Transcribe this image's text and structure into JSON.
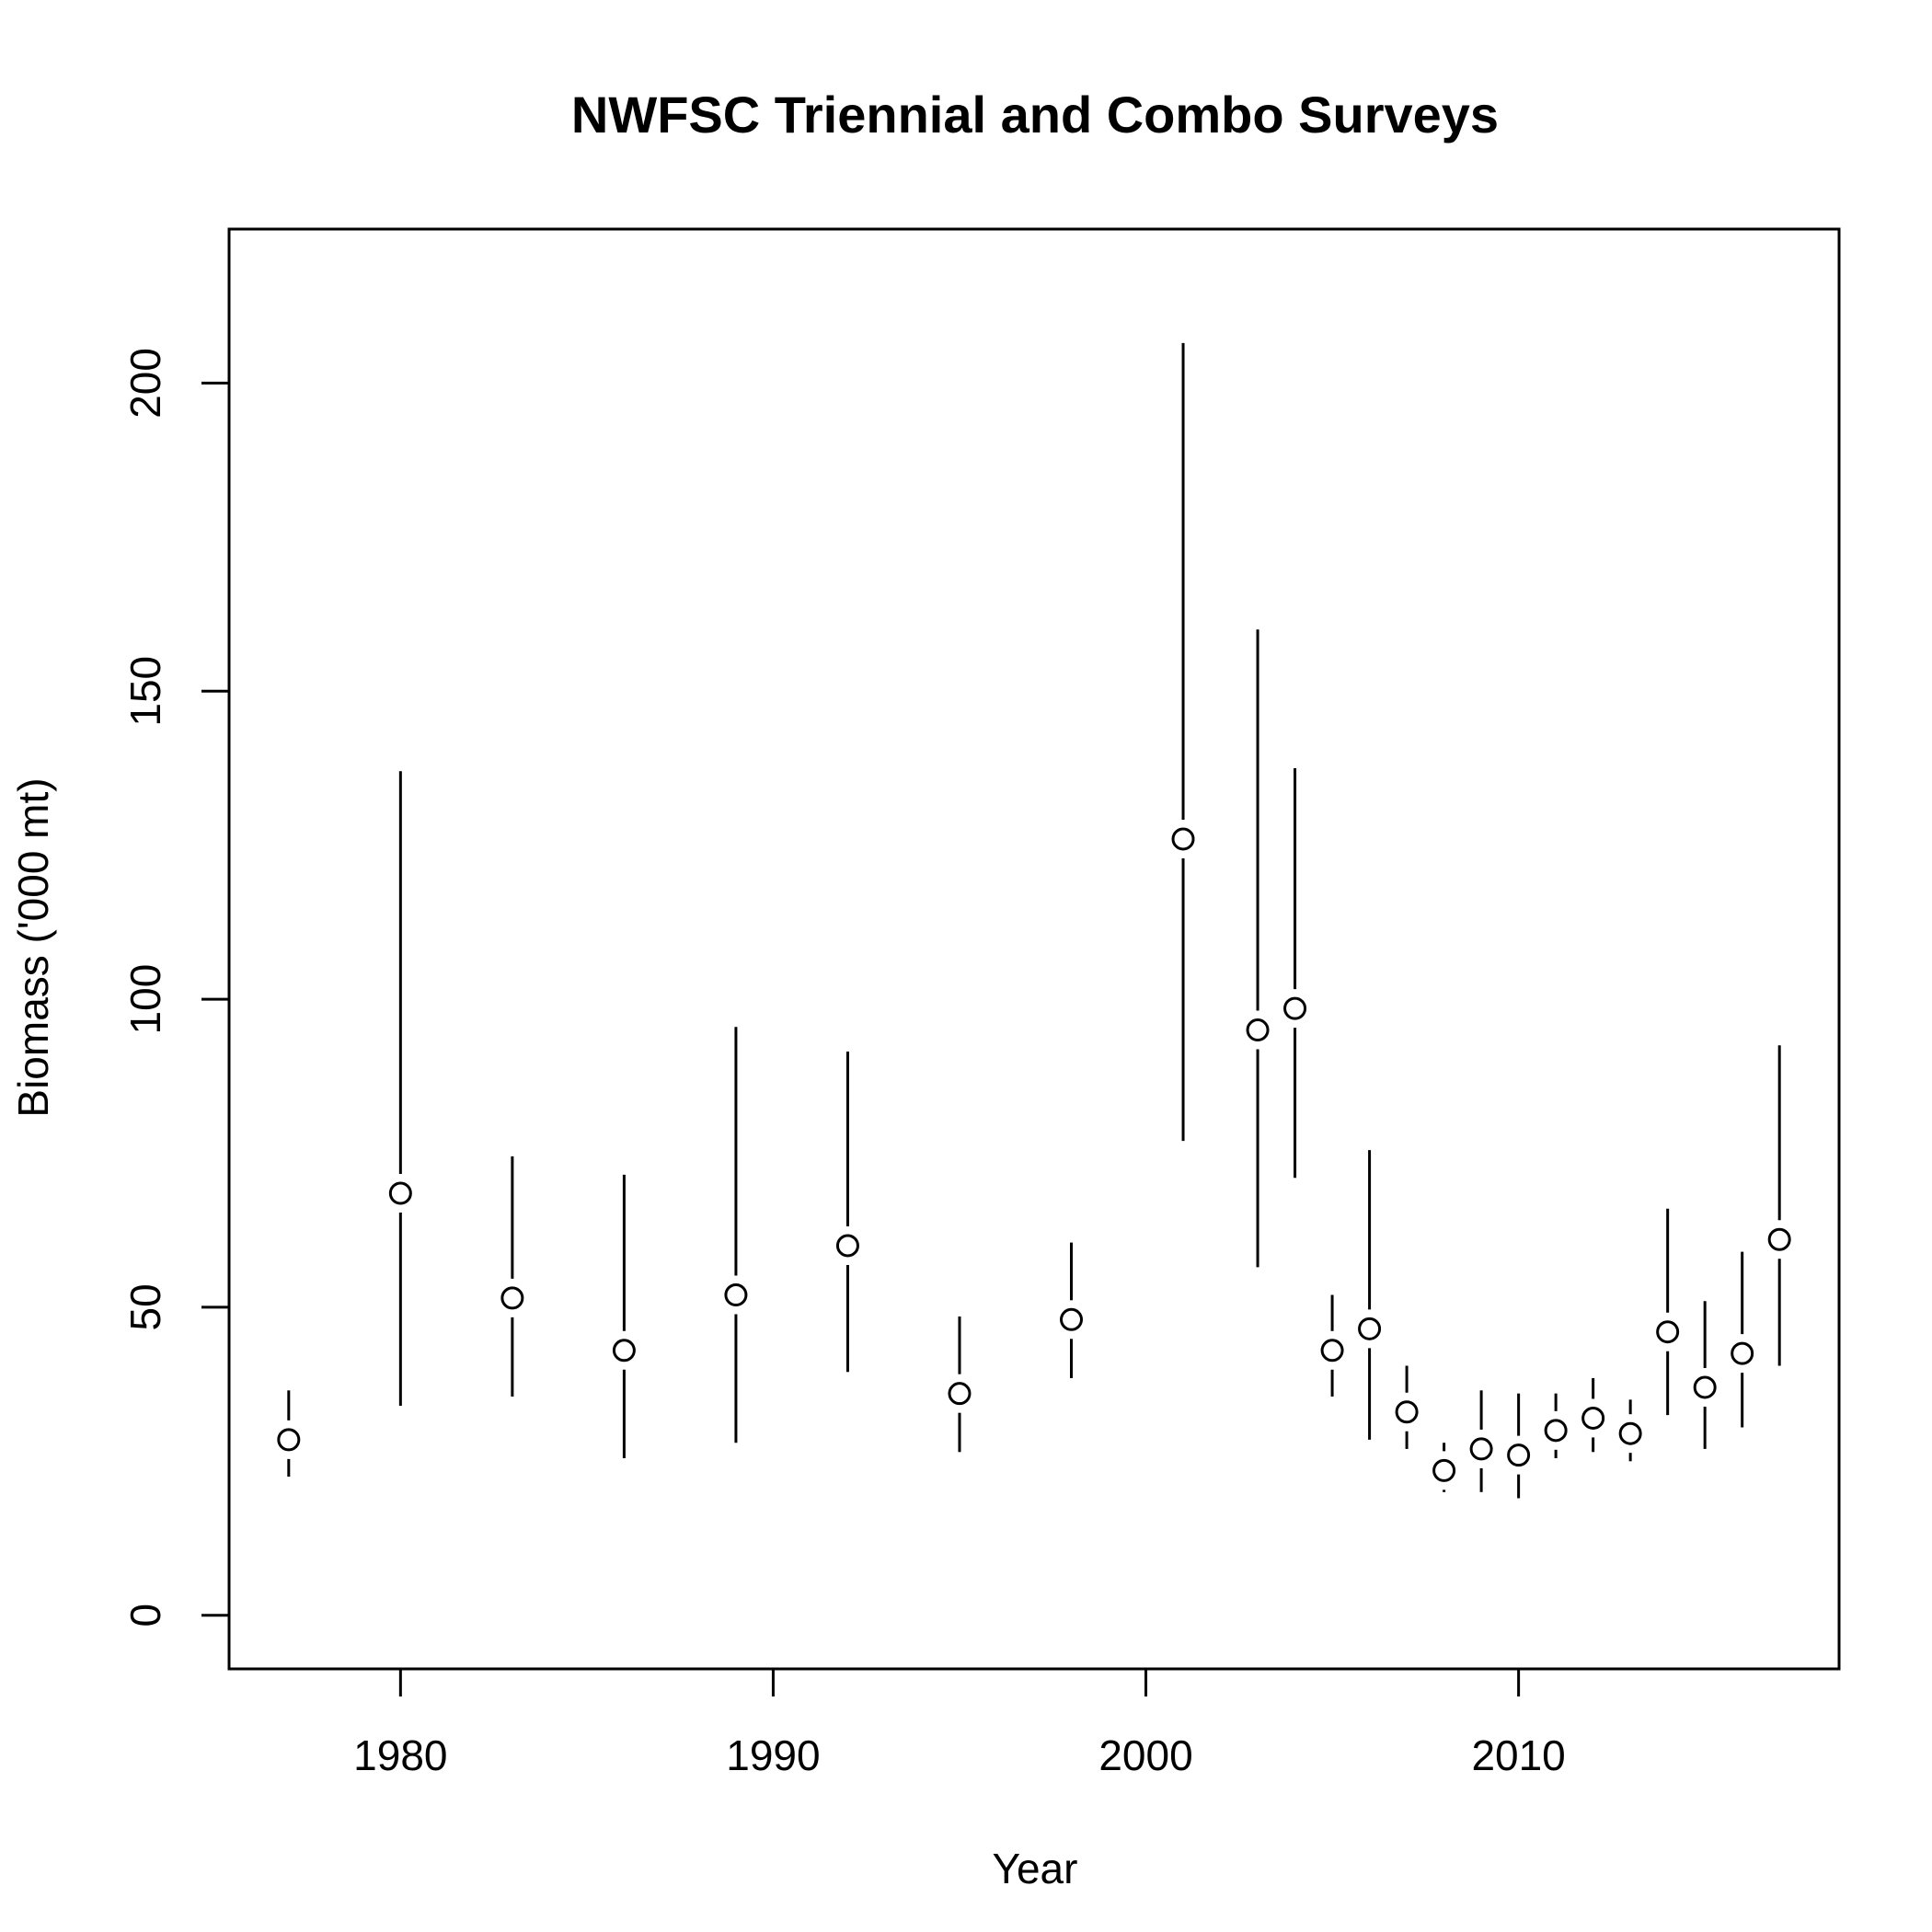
{
  "chart_data": {
    "type": "scatter",
    "title": "NWFSC Triennial and Combo Surveys",
    "xlabel": "Year",
    "ylabel": "Biomass ('000 mt)",
    "xlim": [
      1975.4,
      2018.6
    ],
    "ylim": [
      -8.7,
      225
    ],
    "xticks": [
      1980,
      1990,
      2000,
      2010
    ],
    "yticks": [
      0,
      50,
      100,
      150,
      200
    ],
    "grid": false,
    "error_bars": "vertical interval lines with a gap around each point",
    "points": [
      {
        "year": 1977,
        "value": 28.5,
        "lower": 22.5,
        "upper": 36.5
      },
      {
        "year": 1980,
        "value": 68.5,
        "lower": 34.0,
        "upper": 137.0
      },
      {
        "year": 1983,
        "value": 51.5,
        "lower": 35.5,
        "upper": 74.5
      },
      {
        "year": 1986,
        "value": 43.0,
        "lower": 25.5,
        "upper": 71.5
      },
      {
        "year": 1989,
        "value": 52.0,
        "lower": 28.0,
        "upper": 95.5
      },
      {
        "year": 1992,
        "value": 60.0,
        "lower": 39.5,
        "upper": 91.5
      },
      {
        "year": 1995,
        "value": 36.0,
        "lower": 26.5,
        "upper": 48.5
      },
      {
        "year": 1998,
        "value": 48.0,
        "lower": 38.5,
        "upper": 60.5
      },
      {
        "year": 2001,
        "value": 126.0,
        "lower": 77.0,
        "upper": 206.5
      },
      {
        "year": 2003,
        "value": 95.0,
        "lower": 56.5,
        "upper": 160.0
      },
      {
        "year": 2004,
        "value": 98.5,
        "lower": 71.0,
        "upper": 137.5
      },
      {
        "year": 2005,
        "value": 43.0,
        "lower": 35.5,
        "upper": 52.0
      },
      {
        "year": 2006,
        "value": 46.5,
        "lower": 28.5,
        "upper": 75.5
      },
      {
        "year": 2007,
        "value": 33.0,
        "lower": 27.0,
        "upper": 40.5
      },
      {
        "year": 2008,
        "value": 23.5,
        "lower": 20.0,
        "upper": 28.0
      },
      {
        "year": 2009,
        "value": 27.0,
        "lower": 20.0,
        "upper": 36.5
      },
      {
        "year": 2010,
        "value": 26.0,
        "lower": 19.0,
        "upper": 36.0
      },
      {
        "year": 2011,
        "value": 30.0,
        "lower": 25.5,
        "upper": 36.0
      },
      {
        "year": 2012,
        "value": 32.0,
        "lower": 26.5,
        "upper": 38.5
      },
      {
        "year": 2013,
        "value": 29.5,
        "lower": 25.0,
        "upper": 35.0
      },
      {
        "year": 2014,
        "value": 46.0,
        "lower": 32.5,
        "upper": 66.0
      },
      {
        "year": 2015,
        "value": 37.0,
        "lower": 27.0,
        "upper": 51.0
      },
      {
        "year": 2016,
        "value": 42.5,
        "lower": 30.5,
        "upper": 59.0
      },
      {
        "year": 2017,
        "value": 61.0,
        "lower": 40.5,
        "upper": 92.5
      }
    ]
  }
}
